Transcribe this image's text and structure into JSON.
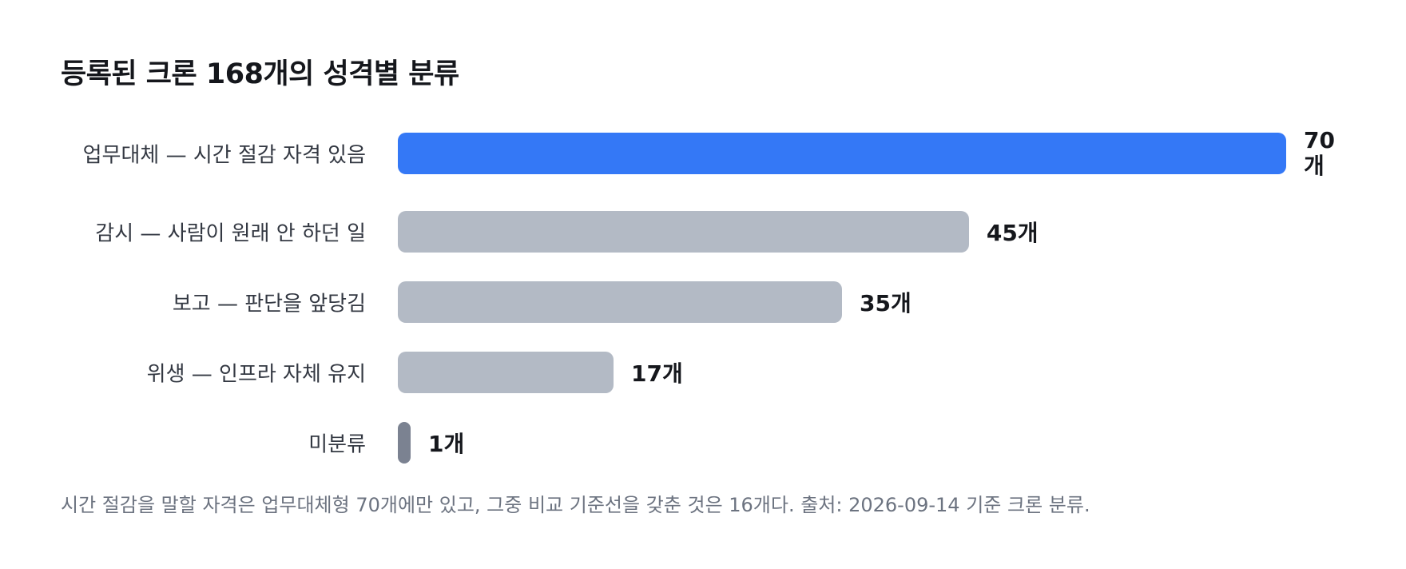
{
  "chart_data": {
    "type": "bar",
    "orientation": "horizontal",
    "title": "등록된 크론 168개의 성격별 분류",
    "categories": [
      "업무대체 — 시간 절감 자격 있음",
      "감시 — 사람이 원래 안 하던 일",
      "보고 — 판단을 앞당김",
      "위생 — 인프라 자체 유지",
      "미분류"
    ],
    "values": [
      70,
      45,
      35,
      17,
      1
    ],
    "value_labels": [
      "70\n개",
      "45개",
      "35개",
      "17개",
      "1개"
    ],
    "bar_colors": [
      "#3478f6",
      "#b3bac5",
      "#b3bac5",
      "#b3bac5",
      "#7b8291"
    ],
    "xlim": [
      0,
      70
    ],
    "grid": false,
    "legend": false,
    "footnote": "시간 절감을 말할 자격은 업무대체형 70개에만 있고, 그중 비교 기준선을 갖춘 것은 16개다. 출처: 2026-09-14 기준 크론 분류."
  }
}
